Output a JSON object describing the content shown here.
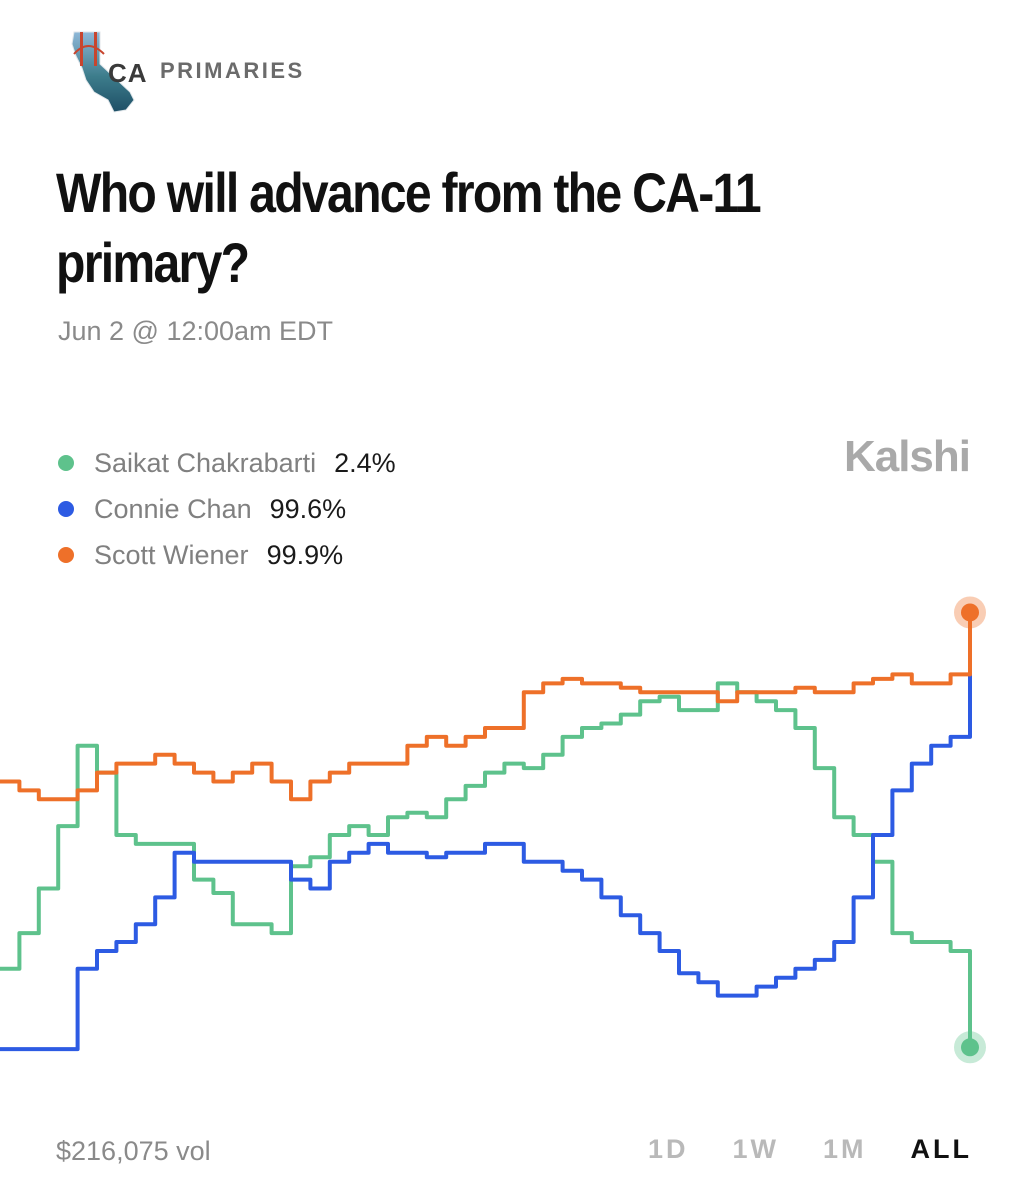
{
  "header": {
    "logo_text": "CA",
    "section": "PRIMARIES"
  },
  "title": "Who will advance from the CA-11\nprimary?",
  "date": "Jun 2 @ 12:00am EDT",
  "brand": "Kalshi",
  "legend": [
    {
      "name": "Saikat Chakrabarti",
      "value": "2.4%",
      "color": "#5ec28c"
    },
    {
      "name": "Connie Chan",
      "value": "99.6%",
      "color": "#2d5be3"
    },
    {
      "name": "Scott Wiener",
      "value": "99.9%",
      "color": "#ee7029"
    }
  ],
  "footer": {
    "volume": "$216,075 vol",
    "ranges": [
      "1D",
      "1W",
      "1M",
      "ALL"
    ],
    "active_range": "ALL"
  },
  "chart_data": {
    "type": "line",
    "x": [
      0,
      2,
      4,
      6,
      8,
      10,
      12,
      14,
      16,
      18,
      20,
      22,
      24,
      26,
      28,
      30,
      32,
      34,
      36,
      38,
      40,
      42,
      44,
      46,
      48,
      50,
      52,
      54,
      56,
      58,
      60,
      62,
      64,
      66,
      68,
      70,
      72,
      74,
      76,
      78,
      80,
      82,
      84,
      86,
      88,
      90,
      92,
      94,
      96,
      98,
      100
    ],
    "ylim": [
      0,
      100
    ],
    "grid": false,
    "legend_position": "top-left",
    "series": [
      {
        "name": "Saikat Chakrabarti",
        "color": "#5ec28c",
        "values": [
          20,
          28,
          38,
          52,
          70,
          64,
          50,
          48,
          48,
          48,
          40,
          37,
          30,
          30,
          28,
          43,
          45,
          50,
          52,
          50,
          54,
          55,
          54,
          58,
          61,
          64,
          66,
          65,
          68,
          72,
          74,
          75,
          77,
          80,
          81,
          78,
          78,
          84,
          82,
          80,
          78,
          74,
          65,
          54,
          50,
          44,
          28,
          26,
          26,
          24,
          2.4
        ]
      },
      {
        "name": "Connie Chan",
        "color": "#2d5be3",
        "values": [
          2,
          2,
          2,
          2,
          20,
          24,
          26,
          30,
          36,
          46,
          44,
          44,
          44,
          44,
          44,
          40,
          38,
          44,
          46,
          48,
          46,
          46,
          45,
          46,
          46,
          48,
          48,
          44,
          44,
          42,
          40,
          36,
          32,
          28,
          24,
          19,
          17,
          14,
          14,
          16,
          18,
          20,
          22,
          26,
          36,
          50,
          60,
          66,
          70,
          72,
          99.6
        ]
      },
      {
        "name": "Scott Wiener",
        "color": "#ee7029",
        "values": [
          62,
          60,
          58,
          58,
          60,
          64,
          66,
          66,
          68,
          66,
          64,
          62,
          64,
          66,
          62,
          58,
          62,
          64,
          66,
          66,
          66,
          70,
          72,
          70,
          72,
          74,
          74,
          82,
          84,
          85,
          84,
          84,
          83,
          82,
          82,
          82,
          82,
          80,
          82,
          82,
          82,
          83,
          82,
          82,
          84,
          85,
          86,
          84,
          84,
          86,
          99.9
        ]
      }
    ]
  }
}
